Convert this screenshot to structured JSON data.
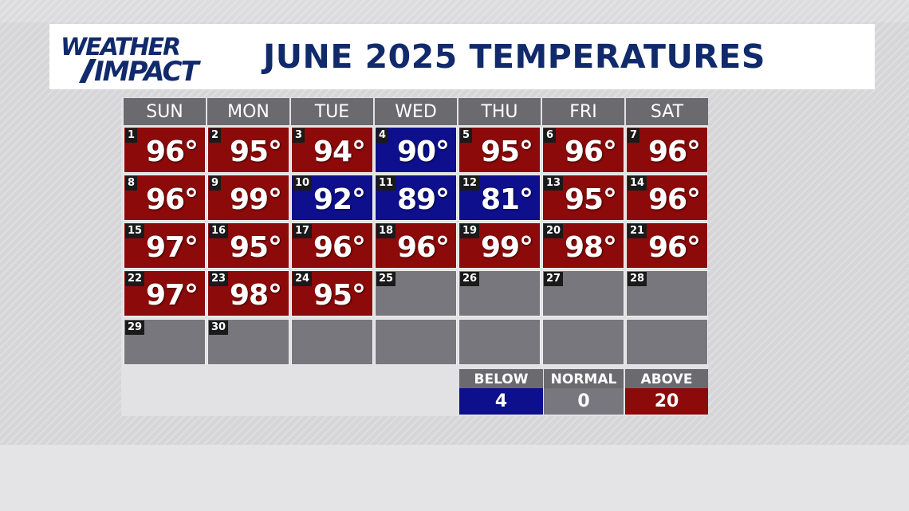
{
  "header": {
    "logo_line1": "WEATHER",
    "logo_line2": "IMPACT",
    "title": "JUNE 2025 TEMPERATURES"
  },
  "colors": {
    "above": "#8c0a0a",
    "below": "#0d0f8c",
    "none": "#78777d",
    "normal": "#78777d",
    "title": "#102a6b"
  },
  "days": [
    "SUN",
    "MON",
    "TUE",
    "WED",
    "THU",
    "FRI",
    "SAT"
  ],
  "weeks": [
    [
      {
        "date": "1",
        "temp": "96°",
        "status": "above"
      },
      {
        "date": "2",
        "temp": "95°",
        "status": "above"
      },
      {
        "date": "3",
        "temp": "94°",
        "status": "above"
      },
      {
        "date": "4",
        "temp": "90°",
        "status": "below"
      },
      {
        "date": "5",
        "temp": "95°",
        "status": "above"
      },
      {
        "date": "6",
        "temp": "96°",
        "status": "above"
      },
      {
        "date": "7",
        "temp": "96°",
        "status": "above"
      }
    ],
    [
      {
        "date": "8",
        "temp": "96°",
        "status": "above"
      },
      {
        "date": "9",
        "temp": "99°",
        "status": "above"
      },
      {
        "date": "10",
        "temp": "92°",
        "status": "below"
      },
      {
        "date": "11",
        "temp": "89°",
        "status": "below"
      },
      {
        "date": "12",
        "temp": "81°",
        "status": "below"
      },
      {
        "date": "13",
        "temp": "95°",
        "status": "above"
      },
      {
        "date": "14",
        "temp": "96°",
        "status": "above"
      }
    ],
    [
      {
        "date": "15",
        "temp": "97°",
        "status": "above"
      },
      {
        "date": "16",
        "temp": "95°",
        "status": "above"
      },
      {
        "date": "17",
        "temp": "96°",
        "status": "above"
      },
      {
        "date": "18",
        "temp": "96°",
        "status": "above"
      },
      {
        "date": "19",
        "temp": "99°",
        "status": "above"
      },
      {
        "date": "20",
        "temp": "98°",
        "status": "above"
      },
      {
        "date": "21",
        "temp": "96°",
        "status": "above"
      }
    ],
    [
      {
        "date": "22",
        "temp": "97°",
        "status": "above"
      },
      {
        "date": "23",
        "temp": "98°",
        "status": "above"
      },
      {
        "date": "24",
        "temp": "95°",
        "status": "above"
      },
      {
        "date": "25",
        "temp": "",
        "status": "none"
      },
      {
        "date": "26",
        "temp": "",
        "status": "none"
      },
      {
        "date": "27",
        "temp": "",
        "status": "none"
      },
      {
        "date": "28",
        "temp": "",
        "status": "none"
      }
    ],
    [
      {
        "date": "29",
        "temp": "",
        "status": "none"
      },
      {
        "date": "30",
        "temp": "",
        "status": "none"
      },
      {
        "date": "",
        "temp": "",
        "status": "none"
      },
      {
        "date": "",
        "temp": "",
        "status": "none"
      },
      {
        "date": "",
        "temp": "",
        "status": "none"
      },
      {
        "date": "",
        "temp": "",
        "status": "none"
      },
      {
        "date": "",
        "temp": "",
        "status": "none"
      }
    ]
  ],
  "summary": [
    {
      "label": "BELOW",
      "value": "4",
      "status": "below"
    },
    {
      "label": "NORMAL",
      "value": "0",
      "status": "normal"
    },
    {
      "label": "ABOVE",
      "value": "20",
      "status": "above"
    }
  ]
}
